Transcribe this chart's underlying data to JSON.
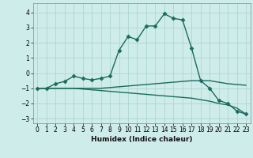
{
  "xlabel": "Humidex (Indice chaleur)",
  "background_color": "#ceecea",
  "grid_color": "#aed6d2",
  "line_color": "#1a6b5e",
  "xlim": [
    -0.5,
    23.5
  ],
  "ylim": [
    -3.3,
    4.6
  ],
  "xticks": [
    0,
    1,
    2,
    3,
    4,
    5,
    6,
    7,
    8,
    9,
    10,
    11,
    12,
    13,
    14,
    15,
    16,
    17,
    18,
    19,
    20,
    21,
    22,
    23
  ],
  "yticks": [
    -3,
    -2,
    -1,
    0,
    1,
    2,
    3,
    4
  ],
  "series": [
    {
      "x": [
        0,
        1,
        2,
        3,
        4,
        5,
        6,
        7,
        8,
        9,
        10,
        11,
        12,
        13,
        14,
        15,
        16,
        17,
        18,
        19,
        20,
        21,
        22,
        23
      ],
      "y": [
        -1.0,
        -1.0,
        -1.0,
        -1.0,
        -1.0,
        -1.05,
        -1.1,
        -1.15,
        -1.2,
        -1.25,
        -1.3,
        -1.35,
        -1.4,
        -1.45,
        -1.5,
        -1.55,
        -1.6,
        -1.65,
        -1.75,
        -1.85,
        -2.0,
        -2.1,
        -2.3,
        -2.7
      ],
      "marker": null,
      "linewidth": 1.0
    },
    {
      "x": [
        0,
        1,
        2,
        3,
        4,
        5,
        6,
        7,
        8,
        9,
        10,
        11,
        12,
        13,
        14,
        15,
        16,
        17,
        18,
        19,
        20,
        21,
        22,
        23
      ],
      "y": [
        -1.0,
        -1.0,
        -1.0,
        -1.0,
        -1.0,
        -1.0,
        -1.0,
        -1.0,
        -0.95,
        -0.9,
        -0.85,
        -0.8,
        -0.75,
        -0.7,
        -0.65,
        -0.6,
        -0.55,
        -0.5,
        -0.5,
        -0.5,
        -0.6,
        -0.7,
        -0.75,
        -0.8
      ],
      "marker": null,
      "linewidth": 1.0
    },
    {
      "x": [
        0,
        1,
        2,
        3,
        4,
        5,
        6,
        7,
        8,
        9,
        10,
        11,
        12,
        13,
        14,
        15,
        16,
        17,
        18,
        19,
        20,
        21,
        22,
        23
      ],
      "y": [
        -1.0,
        -1.0,
        -0.7,
        -0.55,
        -0.2,
        -0.35,
        -0.45,
        -0.35,
        -0.2,
        1.5,
        2.4,
        2.2,
        3.1,
        3.1,
        3.9,
        3.6,
        3.5,
        1.65,
        -0.5,
        -1.0,
        -1.8,
        -2.0,
        -2.5,
        -2.7
      ],
      "marker": "D",
      "markersize": 2.5,
      "linewidth": 1.0
    }
  ]
}
